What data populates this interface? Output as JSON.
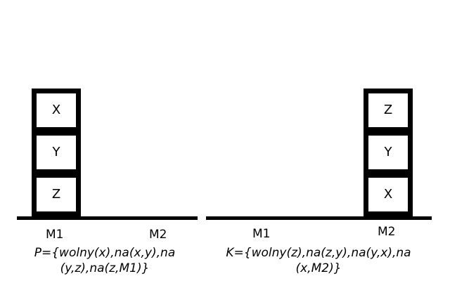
{
  "initial_state": {
    "blocks": [
      "X",
      "Y",
      "Z"
    ],
    "places": [
      "M1",
      "M2"
    ],
    "formula": "P={wolny(x),na(x,y),na (y,z),na(z,M1)}"
  },
  "goal_state": {
    "blocks": [
      "Z",
      "Y",
      "X"
    ],
    "places": [
      "M1",
      "M2"
    ],
    "formula": "K={wolny(z),na(z,y),na(y,x),na (x,M2)}"
  }
}
